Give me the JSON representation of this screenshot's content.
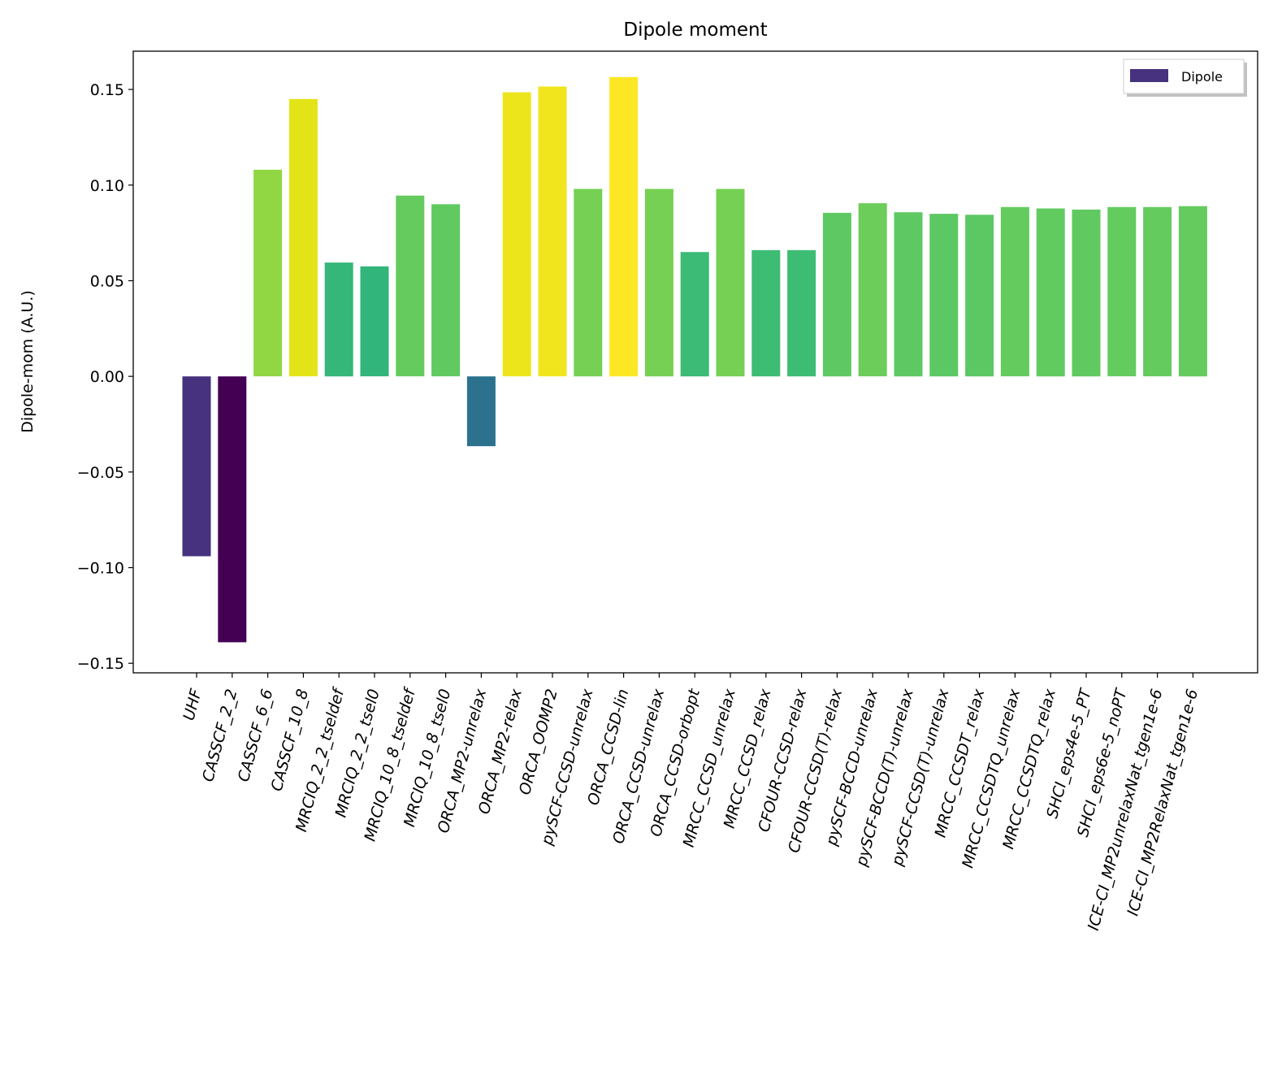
{
  "chart_data": {
    "type": "bar",
    "title": "Dipole moment",
    "xlabel": "",
    "ylabel": "Dipole-mom (A.U.)",
    "ylim": [
      -0.155,
      0.17
    ],
    "yticks": [
      "−0.15",
      "−0.10",
      "−0.05",
      "0.00",
      "0.05",
      "0.10",
      "0.15"
    ],
    "ytick_values": [
      -0.15,
      -0.1,
      -0.05,
      0.0,
      0.05,
      0.1,
      0.15
    ],
    "grid": false,
    "legend": {
      "placement": "top-right",
      "entries": [
        "Dipole"
      ],
      "swatch_color": "#46327e"
    },
    "categories": [
      "UHF",
      "CASSCF_2_2",
      "CASSCF_6_6",
      "CASSCF_10_8",
      "MRCIQ_2_2_tseldef",
      "MRCIQ_2_2_tsel0",
      "MRCIQ_10_8_tseldef",
      "MRCIQ_10_8_tsel0",
      "ORCA_MP2-unrelax",
      "ORCA_MP2-relax",
      "ORCA_OOMP2",
      "pySCF-CCSD-unrelax",
      "ORCA_CCSD-lin",
      "ORCA_CCSD-unrelax",
      "ORCA_CCSD-orbopt",
      "MRCC_CCSD_unrelax",
      "MRCC_CCSD_relax",
      "CFOUR-CCSD-relax",
      "CFOUR-CCSD(T)-relax",
      "pySCF-BCCD-unrelax",
      "pySCF-BCCD(T)-unrelax",
      "pySCF-CCSD(T)-unrelax",
      "MRCC_CCSDT_relax",
      "MRCC_CCSDTQ_unrelax",
      "MRCC_CCSDTQ_relax",
      "SHCI_eps4e-5_PT",
      "SHCI_eps6e-5_noPT",
      "ICE-CI_MP2unrelaxNat_tgen1e-6",
      "ICE-CI_MP2RelaxNat_tgen1e-6"
    ],
    "series": [
      {
        "name": "Dipole",
        "values": [
          -0.094,
          -0.139,
          0.108,
          0.145,
          0.0595,
          0.0575,
          0.0945,
          0.09,
          -0.0365,
          0.1485,
          0.1515,
          0.098,
          0.1565,
          0.098,
          0.065,
          0.098,
          0.066,
          0.066,
          0.0855,
          0.0905,
          0.0858,
          0.085,
          0.0845,
          0.0885,
          0.0878,
          0.0872,
          0.0885,
          0.0885,
          0.089
        ],
        "colors": [
          "#46327e",
          "#440154",
          "#90d743",
          "#e2e418",
          "#35b779",
          "#31b57b",
          "#65cb5e",
          "#60ca60",
          "#2c728e",
          "#ece51b",
          "#f1e51d",
          "#75d054",
          "#fde725",
          "#75d054",
          "#3bbb75",
          "#75d054",
          "#3dbc74",
          "#3dbc74",
          "#5ec962",
          "#6ccd5a",
          "#5ec962",
          "#5cc863",
          "#5cc863",
          "#64cb5f",
          "#62cb5f",
          "#60ca60",
          "#64cb5f",
          "#64cb5f",
          "#65cb5e"
        ]
      }
    ]
  }
}
